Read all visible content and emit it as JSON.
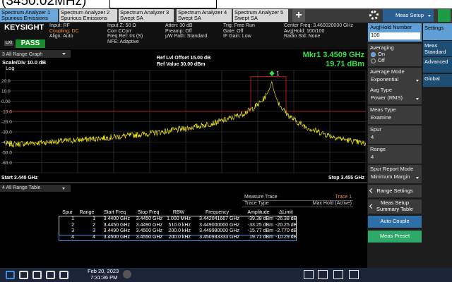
{
  "overlay_text": "(3450.02MHz)",
  "tabs": [
    {
      "line1": "Spectrum Analyzer 1",
      "line2": "Spurious Emissions"
    },
    {
      "line1": "Spectrum Analyzer 2",
      "line2": "Spurious Emissions"
    },
    {
      "line1": "Spectrum Analyzer 3",
      "line2": "Swept SA"
    },
    {
      "line1": "Spectrum Analyzer 4",
      "line2": "Swept SA"
    },
    {
      "line1": "Spectrum Analyzer 5",
      "line2": "Swept SA"
    }
  ],
  "tab_add": "+",
  "mode_menu": "Meas Setup",
  "info": {
    "brand": "KEYSIGHT",
    "mode_tag": "LXI",
    "status": "PASS",
    "columns": [
      [
        "Input: RF",
        "Coupling: DC",
        "Align: Auto"
      ],
      [
        "Input Z: 50 Ω",
        "Corr CCorr",
        "Freq Ref: Int (S)",
        "NFE: Adaptive"
      ],
      [
        "Atten: 30 dB",
        "Preamp: Off",
        "µW Path: Standard"
      ],
      [
        "Trig: Free Run",
        "Gate: Off",
        "IF Gain: Low"
      ],
      [
        "Center Freq: 3.460020000 GHz",
        "Avg|Hold: 100/100",
        "Radio Std: None"
      ]
    ]
  },
  "graph": {
    "window": "3 All Range Graph",
    "scale": "Scale/Div 10.0 dB",
    "scale_type": "Log",
    "ref_offset": "Ref Lvl Offset 15.00 dB",
    "ref_value": "Ref Value 30.00 dBm",
    "marker_freq": "Mkr1 3.4509 GHz",
    "marker_amp": "19.71 dBm",
    "marker_label": "1",
    "y_labels": [
      "20.0",
      "10.0",
      "0.00",
      "-10.0",
      "-20.0",
      "-30.0",
      "-40.0",
      "-50.0",
      "-60.0"
    ],
    "start": "Start 3.440 GHz",
    "stop": "Stop 3.455 GHz"
  },
  "table": {
    "window": "4 All Range Table",
    "info": [
      [
        "Measure Trace",
        "Trace 1"
      ],
      [
        "Trace Type",
        "Max Hold (Active)"
      ]
    ],
    "headers": [
      "Spur",
      "Range",
      "Start Freq",
      "Stop Freq",
      "RBW",
      "Frequency",
      "Amplitude",
      "ΔLimit"
    ],
    "rows": [
      [
        "1",
        "1",
        "3.4400 GHz",
        "3.4450 GHz",
        "1.000 MHz",
        "3.442041667 GHz",
        "-39.38 dBm",
        "-26.38 dB"
      ],
      [
        "2",
        "2",
        "3.4450 GHz",
        "3.4490 GHz",
        "510.0 kHz",
        "3.449000000 GHz",
        "-33.25 dBm",
        "-20.25 dB"
      ],
      [
        "3",
        "3",
        "3.4490 GHz",
        "3.4500 GHz",
        "200.0 kHz",
        "3.449980000 GHz",
        "-15.77 dBm",
        "-2.770 dB"
      ],
      [
        "4",
        "4",
        "3.4500 GHz",
        "3.4550 GHz",
        "200.0 kHz",
        "3.450933333 GHz",
        "19.71 dBm",
        "-10.29 dB"
      ]
    ]
  },
  "menu": {
    "items": [
      {
        "label": "Avg|Hold Number",
        "value": "100"
      },
      {
        "label": "Averaging",
        "options": [
          "On",
          "Off"
        ]
      },
      {
        "label": "Average Mode",
        "value": "Exponential"
      },
      {
        "label": "Avg Type",
        "value": "Power (RMS)"
      },
      {
        "label": "Meas Type",
        "value": "Examine"
      },
      {
        "label": "Spur",
        "value": "4"
      },
      {
        "label": "Range",
        "value": "4"
      },
      {
        "label": "Spur Report Mode",
        "value": "Minimum Margin"
      }
    ],
    "buttons": [
      "Range Settings",
      "Meas Setup Summary Table",
      "Auto Couple",
      "Meas Preset"
    ],
    "side_tabs": [
      "Settings",
      "Meas Standard",
      "Advanced",
      "Global"
    ]
  },
  "taskbar": {
    "date": "Feb 20, 2023",
    "time": "7:31:36 PM"
  }
}
